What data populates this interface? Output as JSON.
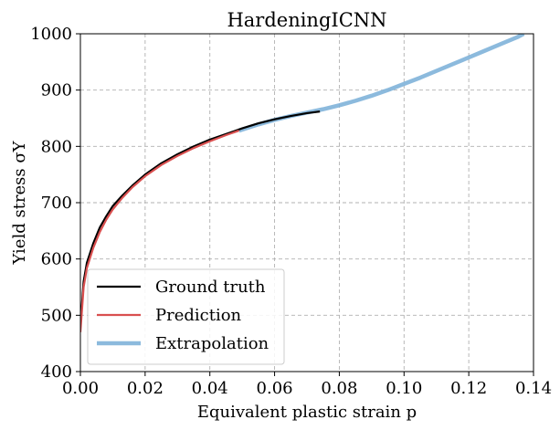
{
  "chart_data": {
    "type": "line",
    "title": "HardeningICNN",
    "xlabel": "Equivalent plastic strain p",
    "ylabel": "Yield stress σY",
    "xlim": [
      0.0,
      0.14
    ],
    "ylim": [
      400,
      1000
    ],
    "xticks": [
      "0.00",
      "0.02",
      "0.04",
      "0.06",
      "0.08",
      "0.10",
      "0.12",
      "0.14"
    ],
    "yticks": [
      "400",
      "500",
      "600",
      "700",
      "800",
      "900",
      "1000"
    ],
    "grid": true,
    "legend_position": "lower-left",
    "series": [
      {
        "name": "Ground truth",
        "color": "#000000",
        "x": [
          0.0,
          0.001,
          0.002,
          0.004,
          0.006,
          0.008,
          0.01,
          0.013,
          0.016,
          0.02,
          0.025,
          0.03,
          0.035,
          0.04,
          0.045,
          0.05,
          0.055,
          0.06,
          0.065,
          0.07,
          0.074
        ],
        "y": [
          480,
          560,
          593,
          628,
          656,
          676,
          694,
          713,
          730,
          750,
          770,
          786,
          800,
          812,
          822,
          832,
          841,
          848,
          854,
          859,
          862
        ]
      },
      {
        "name": "Prediction",
        "color": "#d94f4f",
        "x": [
          0.0,
          0.001,
          0.002,
          0.004,
          0.006,
          0.008,
          0.01,
          0.013,
          0.016,
          0.02,
          0.025,
          0.03,
          0.035,
          0.04,
          0.045,
          0.049
        ],
        "y": [
          470,
          550,
          584,
          620,
          648,
          670,
          688,
          709,
          727,
          747,
          767,
          783,
          797,
          809,
          820,
          828
        ]
      },
      {
        "name": "Extrapolation",
        "color": "#7fb3d9",
        "x": [
          0.049,
          0.055,
          0.06,
          0.065,
          0.07,
          0.075,
          0.08,
          0.085,
          0.09,
          0.095,
          0.1,
          0.105,
          0.11,
          0.115,
          0.12,
          0.125,
          0.13,
          0.135,
          0.137
        ],
        "y": [
          828,
          839,
          847,
          854,
          860,
          866,
          873,
          881,
          890,
          900,
          911,
          922,
          934,
          946,
          958,
          970,
          982,
          994,
          1000
        ]
      }
    ]
  }
}
